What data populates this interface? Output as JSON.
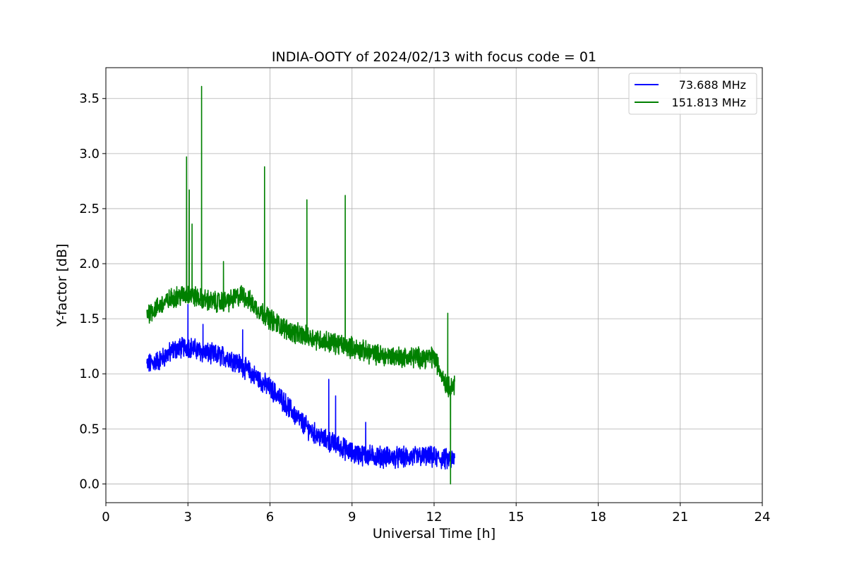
{
  "chart_data": {
    "type": "line",
    "title": "INDIA-OOTY of 2024/02/13 with focus code = 01",
    "xlabel": "Universal Time [h]",
    "ylabel": "Y-factor [dB]",
    "xlim": [
      0,
      24
    ],
    "ylim": [
      -0.17,
      3.78
    ],
    "xticks": [
      "0",
      "3",
      "6",
      "9",
      "12",
      "15",
      "18",
      "21",
      "24"
    ],
    "yticks": [
      "0.0",
      "0.5",
      "1.0",
      "1.5",
      "2.0",
      "2.5",
      "3.0",
      "3.5"
    ],
    "grid": true,
    "legend_position": "top-right",
    "series": [
      {
        "name": "73.688 MHz",
        "color": "#0000ff",
        "x": [
          1.5,
          2.0,
          2.5,
          3.0,
          3.5,
          4.0,
          4.5,
          5.0,
          5.5,
          6.0,
          6.5,
          7.0,
          7.5,
          8.0,
          8.5,
          9.0,
          9.5,
          10.0,
          10.5,
          11.0,
          11.5,
          12.0,
          12.5,
          12.75
        ],
        "y": [
          1.08,
          1.13,
          1.22,
          1.25,
          1.2,
          1.17,
          1.15,
          1.07,
          0.97,
          0.87,
          0.75,
          0.6,
          0.48,
          0.4,
          0.35,
          0.28,
          0.26,
          0.25,
          0.24,
          0.24,
          0.25,
          0.24,
          0.22,
          0.22
        ],
        "spikes": [
          [
            3.0,
            1.63
          ],
          [
            3.55,
            1.45
          ],
          [
            5.0,
            1.4
          ],
          [
            8.15,
            0.95
          ],
          [
            8.4,
            0.8
          ],
          [
            9.5,
            0.56
          ]
        ]
      },
      {
        "name": "151.813 MHz",
        "color": "#008000",
        "x": [
          1.5,
          2.0,
          2.5,
          3.0,
          3.5,
          4.0,
          4.5,
          5.0,
          5.5,
          6.0,
          6.5,
          7.0,
          7.5,
          8.0,
          8.5,
          9.0,
          9.5,
          10.0,
          10.5,
          11.0,
          11.5,
          12.0,
          12.5,
          12.75
        ],
        "y": [
          1.55,
          1.62,
          1.7,
          1.72,
          1.68,
          1.65,
          1.66,
          1.72,
          1.6,
          1.5,
          1.42,
          1.36,
          1.33,
          1.3,
          1.27,
          1.24,
          1.2,
          1.17,
          1.16,
          1.15,
          1.15,
          1.15,
          0.88,
          0.9
        ],
        "spikes": [
          [
            2.95,
            2.97
          ],
          [
            3.05,
            2.67
          ],
          [
            3.15,
            2.36
          ],
          [
            3.5,
            3.61
          ],
          [
            4.3,
            2.02
          ],
          [
            5.8,
            2.88
          ],
          [
            7.35,
            2.58
          ],
          [
            8.75,
            2.62
          ],
          [
            12.5,
            1.55
          ],
          [
            12.6,
            0.0
          ]
        ]
      }
    ]
  }
}
